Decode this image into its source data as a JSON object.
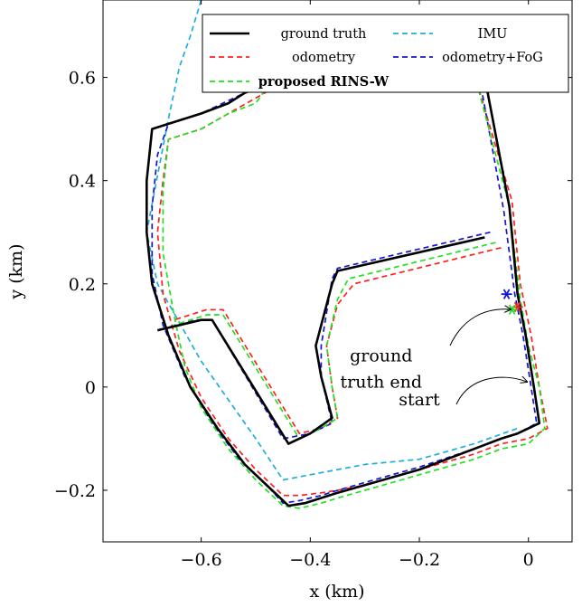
{
  "chart_data": {
    "type": "line",
    "xlabel": "x (km)",
    "ylabel": "y (km)",
    "xlim": [
      -0.78,
      0.08
    ],
    "ylim": [
      -0.3,
      0.75
    ],
    "xticks": [
      -0.6,
      -0.4,
      -0.2,
      0
    ],
    "xtick_labels": [
      "−0.6",
      "−0.4",
      "−0.2",
      "0"
    ],
    "yticks": [
      -0.2,
      0,
      0.2,
      0.4,
      0.6
    ],
    "ytick_labels": [
      "−0.2",
      "0",
      "0.2",
      "0.4",
      "0.6"
    ],
    "grid": false,
    "legend_position": "top-right",
    "series": [
      {
        "name": "ground truth",
        "color": "#000000",
        "style": "solid",
        "bold": false,
        "x": [
          -0.08,
          -0.035,
          -0.02,
          -0.005,
          0.01,
          0.02,
          -0.02,
          -0.05,
          -0.1,
          -0.2,
          -0.3,
          -0.35,
          -0.38,
          -0.41,
          -0.44,
          -0.47,
          -0.52,
          -0.57,
          -0.62,
          -0.66,
          -0.69,
          -0.7,
          -0.7,
          -0.69,
          -0.66,
          -0.6,
          -0.55,
          -0.52,
          -0.47,
          -0.43,
          -0.41
        ],
        "y": [
          0.6,
          0.35,
          0.18,
          0.1,
          0.0,
          -0.07,
          -0.09,
          -0.1,
          -0.12,
          -0.16,
          -0.19,
          -0.205,
          -0.215,
          -0.225,
          -0.23,
          -0.2,
          -0.15,
          -0.08,
          0.0,
          0.1,
          0.2,
          0.3,
          0.4,
          0.5,
          0.51,
          0.53,
          0.55,
          0.57,
          0.59,
          0.6,
          0.6
        ]
      },
      {
        "name": "IMU",
        "color": "#1eaedb",
        "style": "dashed",
        "bold": false,
        "x": [
          -0.6,
          -0.62,
          -0.64,
          -0.66,
          -0.7,
          -0.68,
          -0.6,
          -0.5,
          -0.45,
          -0.3,
          -0.2,
          -0.1,
          -0.02
        ],
        "y": [
          0.75,
          0.68,
          0.62,
          0.52,
          0.3,
          0.2,
          0.05,
          -0.1,
          -0.18,
          -0.15,
          -0.14,
          -0.11,
          -0.08
        ]
      },
      {
        "name": "odometry",
        "color": "#ff2020",
        "style": "dashed",
        "bold": false,
        "x": [
          -0.1,
          -0.03,
          -0.015,
          0.005,
          0.02,
          0.035,
          0.0,
          -0.05,
          -0.1,
          -0.2,
          -0.3,
          -0.35,
          -0.38,
          -0.42,
          -0.45,
          -0.5,
          -0.55,
          -0.6,
          -0.64,
          -0.67,
          -0.68,
          -0.67,
          -0.66,
          -0.6,
          -0.55,
          -0.5,
          -0.45
        ],
        "y": [
          0.61,
          0.36,
          0.2,
          0.1,
          0.0,
          -0.08,
          -0.1,
          -0.11,
          -0.13,
          -0.16,
          -0.19,
          -0.2,
          -0.205,
          -0.21,
          -0.21,
          -0.16,
          -0.1,
          -0.02,
          0.07,
          0.18,
          0.3,
          0.4,
          0.48,
          0.5,
          0.53,
          0.56,
          0.59
        ]
      },
      {
        "name": "odometry+FoG",
        "color": "#1515d0",
        "style": "dashed",
        "bold": false,
        "x": [
          -0.09,
          -0.045,
          -0.025,
          -0.01,
          0.005,
          0.015,
          -0.02,
          -0.05,
          -0.1,
          -0.2,
          -0.3,
          -0.35,
          -0.38,
          -0.42,
          -0.45,
          -0.48,
          -0.53,
          -0.58,
          -0.63,
          -0.67,
          -0.69,
          -0.69,
          -0.68,
          -0.66,
          -0.6,
          -0.55,
          -0.5,
          -0.46
        ],
        "y": [
          0.6,
          0.34,
          0.18,
          0.1,
          0.0,
          -0.07,
          -0.09,
          -0.1,
          -0.12,
          -0.155,
          -0.185,
          -0.2,
          -0.21,
          -0.22,
          -0.225,
          -0.19,
          -0.14,
          -0.07,
          0.02,
          0.12,
          0.22,
          0.35,
          0.45,
          0.51,
          0.53,
          0.555,
          0.58,
          0.6
        ]
      },
      {
        "name": "proposed RINS-W",
        "color": "#22e022",
        "style": "dashed",
        "bold": true,
        "x": [
          -0.1,
          -0.035,
          -0.015,
          0.0,
          0.02,
          0.03,
          0.0,
          -0.05,
          -0.1,
          -0.2,
          -0.3,
          -0.35,
          -0.38,
          -0.42,
          -0.45,
          -0.5,
          -0.55,
          -0.6,
          -0.63,
          -0.65,
          -0.67,
          -0.67,
          -0.66,
          -0.6,
          -0.55,
          -0.5,
          -0.48
        ],
        "y": [
          0.61,
          0.35,
          0.17,
          0.08,
          0.0,
          -0.08,
          -0.11,
          -0.12,
          -0.14,
          -0.17,
          -0.2,
          -0.215,
          -0.225,
          -0.235,
          -0.23,
          -0.18,
          -0.12,
          -0.04,
          0.04,
          0.14,
          0.26,
          0.38,
          0.48,
          0.5,
          0.53,
          0.55,
          0.58
        ]
      }
    ],
    "inner_loops": [
      {
        "series": "ground truth",
        "x": [
          -0.08,
          -0.35,
          -0.36,
          -0.39,
          -0.38,
          -0.36,
          -0.4,
          -0.44,
          -0.58,
          -0.6,
          -0.68
        ],
        "y": [
          0.29,
          0.225,
          0.2,
          0.08,
          0.02,
          -0.06,
          -0.09,
          -0.11,
          0.13,
          0.13,
          0.11
        ]
      },
      {
        "series": "odometry",
        "x": [
          -0.05,
          -0.32,
          -0.35,
          -0.37,
          -0.36,
          -0.35,
          -0.38,
          -0.42,
          -0.56,
          -0.59,
          -0.65
        ],
        "y": [
          0.27,
          0.2,
          0.16,
          0.08,
          0.0,
          -0.06,
          -0.08,
          -0.09,
          0.15,
          0.15,
          0.13
        ]
      },
      {
        "series": "odometry+FoG",
        "x": [
          -0.07,
          -0.35,
          -0.36,
          -0.38,
          -0.38,
          -0.36,
          -0.4,
          -0.45,
          -0.58,
          -0.61,
          -0.68
        ],
        "y": [
          0.3,
          0.23,
          0.21,
          0.08,
          0.02,
          -0.07,
          -0.09,
          -0.1,
          0.13,
          0.13,
          0.11
        ]
      },
      {
        "series": "proposed RINS-W",
        "x": [
          -0.06,
          -0.33,
          -0.35,
          -0.37,
          -0.36,
          -0.35,
          -0.38,
          -0.42,
          -0.56,
          -0.59,
          -0.65
        ],
        "y": [
          0.28,
          0.21,
          0.17,
          0.08,
          0.0,
          -0.06,
          -0.08,
          -0.1,
          0.14,
          0.14,
          0.12
        ]
      }
    ],
    "end_markers": [
      {
        "color": "#ff2020",
        "x": -0.02,
        "y": 0.155
      },
      {
        "color": "#22e022",
        "x": -0.03,
        "y": 0.15
      },
      {
        "color": "#1515d0",
        "x": -0.04,
        "y": 0.18
      }
    ],
    "annotations": [
      {
        "lines": [
          "ground",
          "truth end"
        ],
        "x": -0.27,
        "y": 0.05
      },
      {
        "lines": [
          "start"
        ],
        "x": -0.2,
        "y": -0.035
      }
    ]
  }
}
